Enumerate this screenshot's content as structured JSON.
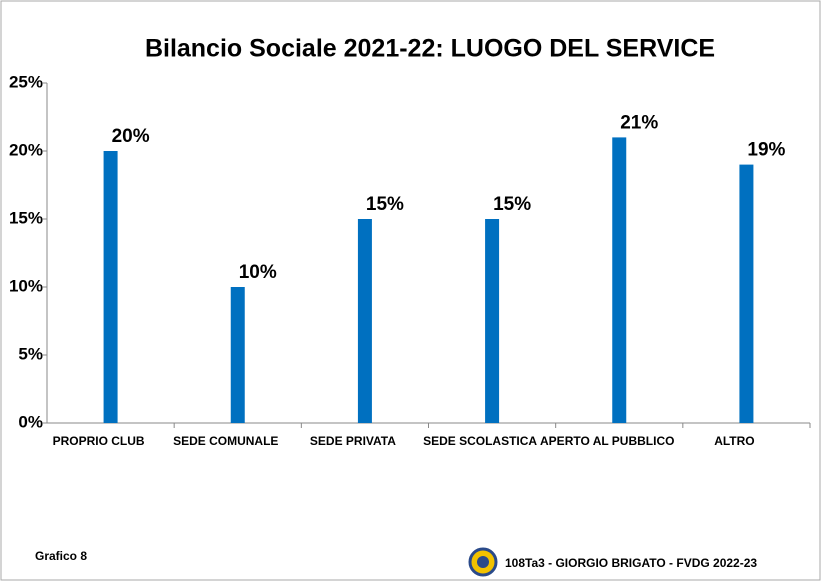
{
  "chart_data": {
    "type": "bar",
    "title": "Bilancio Sociale 2021-22: LUOGO DEL SERVICE",
    "categories": [
      "PROPRIO CLUB",
      "SEDE COMUNALE",
      "SEDE PRIVATA",
      "SEDE SCOLASTICA",
      "APERTO AL PUBBLICO",
      "ALTRO"
    ],
    "values": [
      20,
      10,
      15,
      15,
      21,
      19
    ],
    "value_labels": [
      "20%",
      "10%",
      "15%",
      "15%",
      "21%",
      "19%"
    ],
    "color": "#0070c0",
    "ylim": [
      0,
      25
    ],
    "yticks": [
      {
        "value": 0,
        "label": "0%"
      },
      {
        "value": 5,
        "label": "5%"
      },
      {
        "value": 10,
        "label": "10%"
      },
      {
        "value": 15,
        "label": "15%"
      },
      {
        "value": 20,
        "label": "20%"
      },
      {
        "value": 25,
        "label": "25%"
      }
    ],
    "grid": false,
    "footer_left": "Grafico 8",
    "footer_right": "108Ta3 - GIORGIO BRIGATO - FVDG 2022-23"
  }
}
